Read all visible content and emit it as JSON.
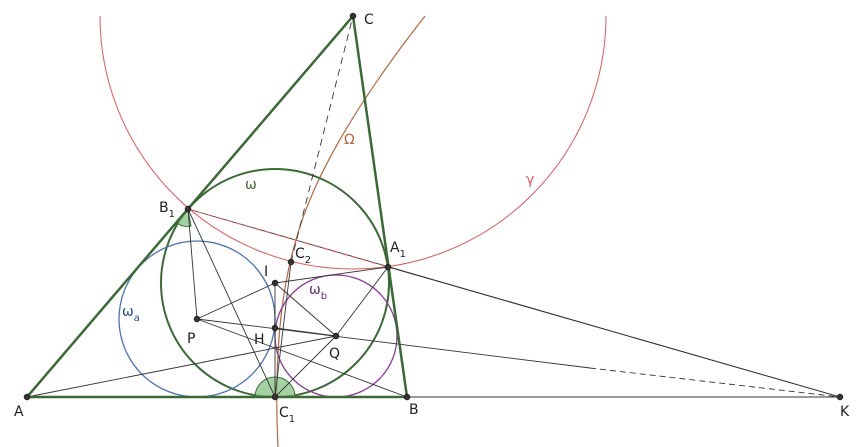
{
  "points": [
    {
      "name": "A"
    },
    {
      "name": "B"
    },
    {
      "name": "C"
    },
    {
      "name": "K"
    },
    {
      "name": "B",
      "sub": "1"
    },
    {
      "name": "A",
      "sub": "1"
    },
    {
      "name": "C",
      "sub": "1"
    },
    {
      "name": "C",
      "sub": "2"
    },
    {
      "name": "I"
    },
    {
      "name": "H"
    },
    {
      "name": "P"
    },
    {
      "name": "Q"
    }
  ],
  "circles": [
    {
      "name": "ω"
    },
    {
      "name": "ω",
      "sub": "a"
    },
    {
      "name": "ω",
      "sub": "b"
    },
    {
      "name": "Ω"
    },
    {
      "name": "γ"
    }
  ]
}
